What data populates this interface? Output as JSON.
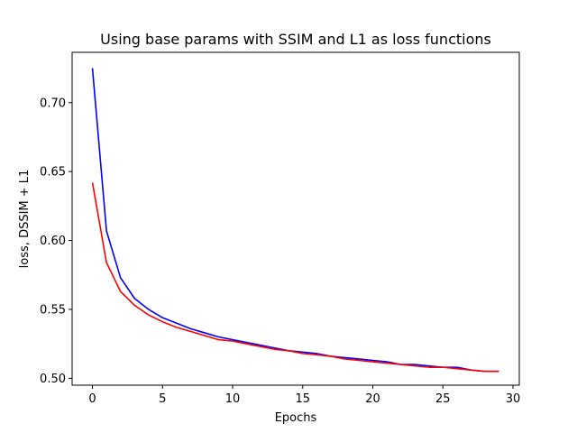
{
  "chart_data": {
    "type": "line",
    "title": "Using base params with SSIM and L1 as loss functions",
    "xlabel": "Epochs",
    "ylabel": "loss, DSSIM + L1",
    "xlim": [
      -1.45,
      30.45
    ],
    "ylim": [
      0.495,
      0.7365
    ],
    "xticks": [
      0,
      5,
      10,
      15,
      20,
      25,
      30
    ],
    "xtick_labels": [
      "0",
      "5",
      "10",
      "15",
      "20",
      "25",
      "30"
    ],
    "yticks": [
      0.5,
      0.55,
      0.6,
      0.65,
      0.7
    ],
    "ytick_labels": [
      "0.50",
      "0.55",
      "0.60",
      "0.65",
      "0.70"
    ],
    "grid": false,
    "series": [
      {
        "color": "#0000ff",
        "x": [
          0,
          1,
          2,
          3,
          4,
          5,
          6,
          7,
          8,
          9,
          10,
          11,
          12,
          13,
          14,
          15,
          16,
          17,
          18,
          19,
          20,
          21,
          22,
          23,
          24,
          25,
          26,
          27,
          28,
          29
        ],
        "values": [
          0.725,
          0.607,
          0.573,
          0.558,
          0.55,
          0.544,
          0.54,
          0.536,
          0.533,
          0.53,
          0.528,
          0.526,
          0.524,
          0.522,
          0.52,
          0.519,
          0.518,
          0.516,
          0.515,
          0.514,
          0.513,
          0.512,
          0.51,
          0.51,
          0.509,
          0.508,
          0.508,
          0.506,
          0.505,
          0.505
        ]
      },
      {
        "color": "#ff0000",
        "x": [
          0,
          1,
          2,
          3,
          4,
          5,
          6,
          7,
          8,
          9,
          10,
          11,
          12,
          13,
          14,
          15,
          16,
          17,
          18,
          19,
          20,
          21,
          22,
          23,
          24,
          25,
          26,
          27,
          28,
          29
        ],
        "values": [
          0.642,
          0.584,
          0.563,
          0.553,
          0.546,
          0.541,
          0.537,
          0.534,
          0.531,
          0.528,
          0.527,
          0.525,
          0.523,
          0.521,
          0.52,
          0.518,
          0.517,
          0.516,
          0.514,
          0.513,
          0.512,
          0.511,
          0.51,
          0.509,
          0.508,
          0.508,
          0.507,
          0.506,
          0.505,
          0.505
        ]
      }
    ]
  }
}
